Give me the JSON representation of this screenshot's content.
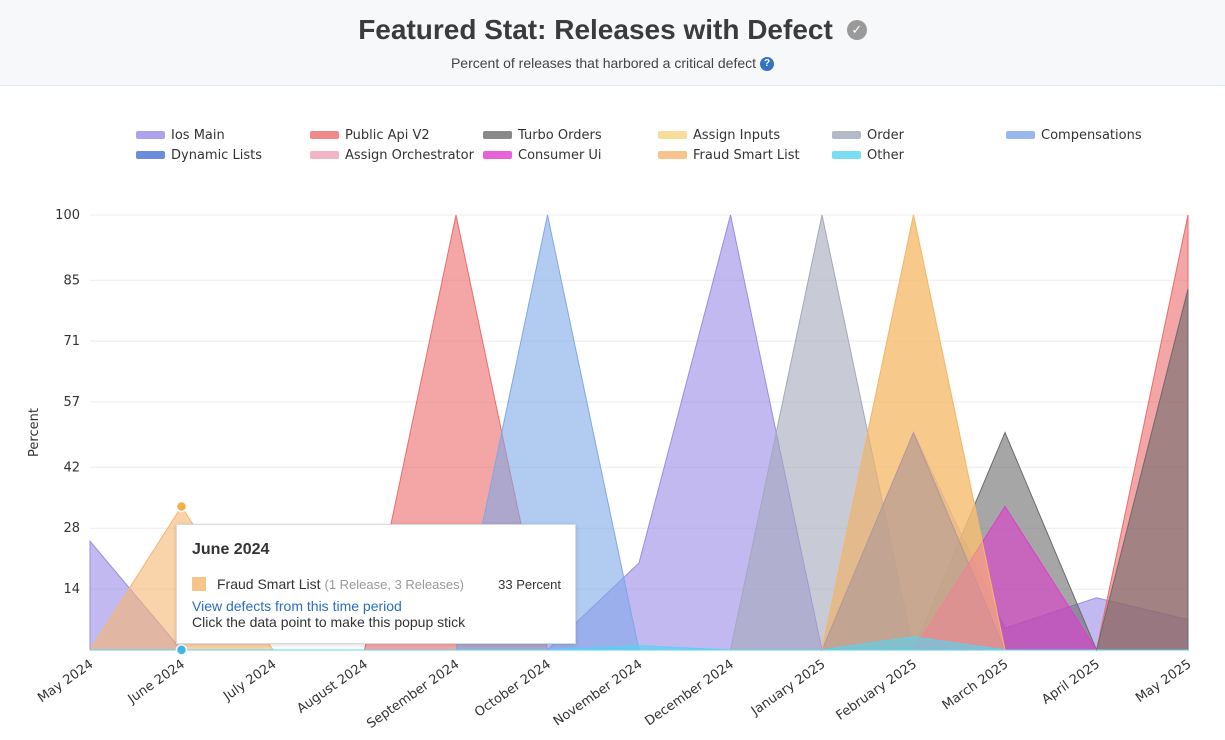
{
  "header": {
    "title": "Featured Stat: Releases with Defect",
    "subtitle": "Percent of releases that harbored a critical defect",
    "title_icon": "check-circle-icon",
    "help_icon": "question-circle-icon",
    "help_symbol": "?"
  },
  "tooltip": {
    "title": "June 2024",
    "series": "Fraud Smart List",
    "detail": "(1 Release, 3 Releases)",
    "value": "33 Percent",
    "link": "View defects from this time period",
    "hint": "Click the data point to make this popup stick",
    "color": "#f7c48a"
  },
  "chart_data": {
    "type": "area",
    "ylabel": "Percent",
    "xlabel": "",
    "ylim": [
      0,
      100
    ],
    "yticks": [
      14,
      28,
      42,
      57,
      71,
      85,
      100
    ],
    "categories": [
      "May 2024",
      "June 2024",
      "July 2024",
      "August 2024",
      "September 2024",
      "October 2024",
      "November 2024",
      "December 2024",
      "January 2025",
      "February 2025",
      "March 2025",
      "April 2025",
      "May 2025"
    ],
    "legend_position": "top",
    "grid": true,
    "series": [
      {
        "name": "Ios  Main",
        "color": "#9b8be8",
        "values": [
          25,
          0,
          0,
          0,
          0,
          0,
          20,
          100,
          0,
          50,
          5,
          12,
          7
        ]
      },
      {
        "name": "Public Api V2",
        "color": "#ec6b6b",
        "values": [
          0,
          0,
          0,
          0,
          100,
          0,
          0,
          0,
          0,
          0,
          0,
          0,
          100
        ]
      },
      {
        "name": "Turbo Orders",
        "color": "#6b6b6b",
        "values": [
          0,
          0,
          0,
          0,
          0,
          0,
          0,
          0,
          0,
          0,
          50,
          0,
          83
        ]
      },
      {
        "name": "Assign Inputs",
        "color": "#f5d47e",
        "values": [
          0,
          0,
          0,
          0,
          0,
          0,
          0,
          0,
          0,
          100,
          0,
          0,
          0
        ]
      },
      {
        "name": "Order",
        "color": "#a3a9b9",
        "values": [
          0,
          0,
          0,
          0,
          0,
          0,
          0,
          0,
          100,
          0,
          0,
          0,
          0
        ]
      },
      {
        "name": "Compensations",
        "color": "#7fa8e8",
        "values": [
          0,
          0,
          0,
          0,
          0,
          100,
          0,
          0,
          0,
          0,
          0,
          0,
          0
        ]
      },
      {
        "name": "Dynamic Lists",
        "color": "#4a6fd3",
        "values": [
          0,
          0,
          0,
          0,
          0,
          0,
          0,
          0,
          0,
          50,
          0,
          0,
          0
        ]
      },
      {
        "name": "Assign Orchestrator",
        "color": "#f0a3b6",
        "values": [
          0,
          0,
          0,
          0,
          0,
          0,
          0,
          0,
          0,
          0,
          0,
          0,
          0
        ]
      },
      {
        "name": "Consumer Ui",
        "color": "#e03ccf",
        "values": [
          0,
          0,
          0,
          0,
          0,
          0,
          0,
          0,
          0,
          0,
          33,
          0,
          0
        ]
      },
      {
        "name": "Fraud Smart List",
        "color": "#f5b66f",
        "values": [
          0,
          33,
          0,
          0,
          0,
          0,
          0,
          0,
          0,
          100,
          0,
          0,
          0
        ]
      },
      {
        "name": "Other",
        "color": "#57d4f2",
        "values": [
          0,
          0,
          0,
          0,
          0,
          0,
          1,
          0,
          0,
          3,
          0,
          0,
          0
        ]
      }
    ]
  }
}
